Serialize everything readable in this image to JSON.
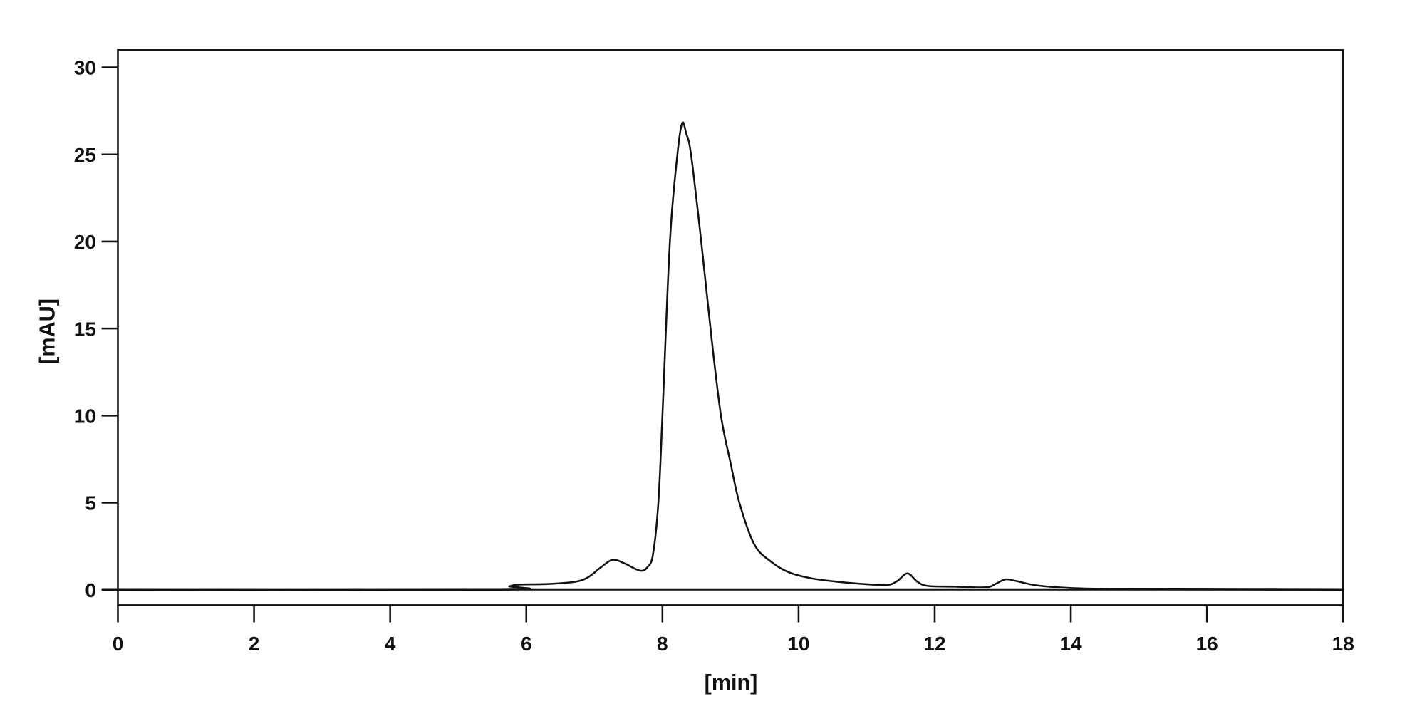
{
  "chart_data": {
    "type": "line",
    "title": "",
    "xlabel": "[min]",
    "ylabel": "[mAU]",
    "xlim": [
      0,
      18
    ],
    "ylim": [
      -0.9,
      31
    ],
    "xticks": [
      0,
      2,
      4,
      6,
      8,
      10,
      12,
      14,
      16,
      18
    ],
    "yticks": [
      0,
      5,
      10,
      15,
      20,
      25,
      30
    ],
    "grid": false,
    "line_color": "#111111",
    "series": [
      {
        "x": [
          0,
          5.6,
          5.75,
          5.9,
          6.3,
          6.7,
          6.9,
          7.1,
          7.27,
          7.45,
          7.6,
          7.7,
          7.78,
          7.86,
          7.94,
          8.0,
          8.11,
          8.22,
          8.29,
          8.35,
          8.42,
          8.57,
          8.72,
          8.86,
          9.0,
          9.13,
          9.35,
          9.6,
          9.86,
          10.2,
          10.6,
          11.0,
          11.3,
          11.45,
          11.6,
          11.75,
          11.9,
          12.3,
          12.75,
          12.9,
          13.04,
          13.2,
          13.5,
          14.0,
          14.5,
          15.5,
          18
        ],
        "y": [
          0,
          0,
          0.2,
          0.3,
          0.33,
          0.45,
          0.7,
          1.3,
          1.72,
          1.5,
          1.2,
          1.09,
          1.3,
          2.0,
          5.0,
          10.0,
          20.0,
          25.0,
          26.8,
          26.2,
          25.0,
          20.0,
          14.5,
          10.0,
          7.3,
          5.0,
          2.6,
          1.6,
          1.0,
          0.65,
          0.45,
          0.32,
          0.27,
          0.5,
          0.94,
          0.45,
          0.22,
          0.18,
          0.14,
          0.35,
          0.6,
          0.5,
          0.25,
          0.1,
          0.05,
          0.02,
          0
        ]
      }
    ]
  }
}
